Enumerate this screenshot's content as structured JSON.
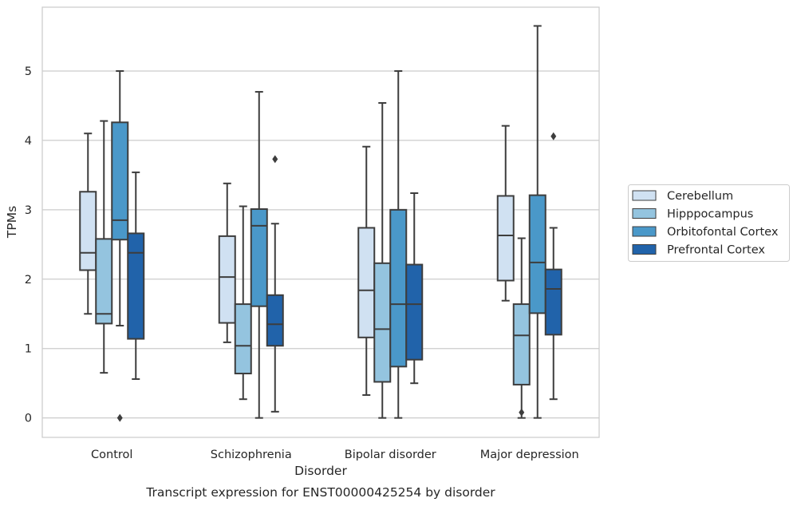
{
  "chart_data": {
    "type": "box",
    "xlabel": "Disorder",
    "ylabel": "TPMs",
    "caption": "Transcript expression for ENST00000425254 by disorder",
    "categories": [
      "Control",
      "Schizophrenia",
      "Bipolar disorder",
      "Major depression"
    ],
    "ylim": [
      -0.28,
      5.92
    ],
    "yticks": [
      "0",
      "1",
      "2",
      "3",
      "4",
      "5"
    ],
    "grid": "horizontal",
    "legend_position": "right",
    "series": [
      {
        "name": "Cerebellum",
        "color": "#d0e1f2",
        "boxes": [
          {
            "whislo": 1.5,
            "q1": 2.13,
            "med": 2.38,
            "q3": 3.26,
            "whishi": 4.1,
            "fliers": []
          },
          {
            "whislo": 1.09,
            "q1": 1.37,
            "med": 2.03,
            "q3": 2.62,
            "whishi": 3.38,
            "fliers": []
          },
          {
            "whislo": 0.33,
            "q1": 1.16,
            "med": 1.84,
            "q3": 2.74,
            "whishi": 3.91,
            "fliers": []
          },
          {
            "whislo": 1.69,
            "q1": 1.98,
            "med": 2.63,
            "q3": 3.2,
            "whishi": 4.21,
            "fliers": []
          }
        ]
      },
      {
        "name": "Hipppocampus",
        "color": "#94c4df",
        "boxes": [
          {
            "whislo": 0.65,
            "q1": 1.36,
            "med": 1.5,
            "q3": 2.58,
            "whishi": 4.28,
            "fliers": []
          },
          {
            "whislo": 0.27,
            "q1": 0.64,
            "med": 1.04,
            "q3": 1.64,
            "whishi": 3.05,
            "fliers": []
          },
          {
            "whislo": 0.0,
            "q1": 0.52,
            "med": 1.28,
            "q3": 2.23,
            "whishi": 4.54,
            "fliers": []
          },
          {
            "whislo": 0.0,
            "q1": 0.48,
            "med": 1.19,
            "q3": 1.64,
            "whishi": 2.59,
            "fliers": [
              0.08
            ]
          }
        ]
      },
      {
        "name": "Orbitofontal Cortex",
        "color": "#4a98c9",
        "boxes": [
          {
            "whislo": 1.33,
            "q1": 2.57,
            "med": 2.85,
            "q3": 4.26,
            "whishi": 5.0,
            "fliers": [
              0.0
            ]
          },
          {
            "whislo": 0.0,
            "q1": 1.61,
            "med": 2.77,
            "q3": 3.01,
            "whishi": 4.7,
            "fliers": []
          },
          {
            "whislo": 0.0,
            "q1": 0.74,
            "med": 1.64,
            "q3": 3.0,
            "whishi": 5.0,
            "fliers": []
          },
          {
            "whislo": 0.0,
            "q1": 1.51,
            "med": 2.24,
            "q3": 3.21,
            "whishi": 5.65,
            "fliers": []
          }
        ]
      },
      {
        "name": "Prefrontal Cortex",
        "color": "#2163aa",
        "boxes": [
          {
            "whislo": 0.56,
            "q1": 1.14,
            "med": 2.38,
            "q3": 2.66,
            "whishi": 3.54,
            "fliers": []
          },
          {
            "whislo": 0.09,
            "q1": 1.04,
            "med": 1.35,
            "q3": 1.77,
            "whishi": 2.8,
            "fliers": [
              3.73
            ]
          },
          {
            "whislo": 0.5,
            "q1": 0.84,
            "med": 1.64,
            "q3": 2.21,
            "whishi": 3.24,
            "fliers": []
          },
          {
            "whislo": 0.27,
            "q1": 1.2,
            "med": 1.86,
            "q3": 2.14,
            "whishi": 2.74,
            "fliers": [
              4.06
            ]
          }
        ]
      }
    ]
  }
}
